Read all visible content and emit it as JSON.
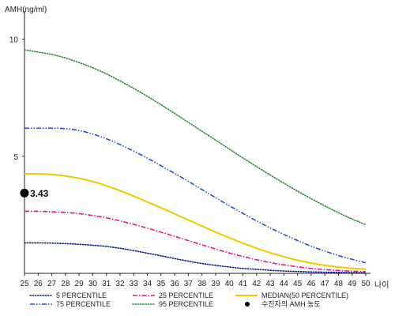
{
  "chart_data": {
    "type": "line",
    "ylabel": "AMH(ng/ml)",
    "xlabel": "나이",
    "xlim": [
      25,
      50
    ],
    "ylim": [
      0,
      11
    ],
    "x": [
      25,
      26,
      27,
      28,
      29,
      30,
      31,
      32,
      33,
      34,
      35,
      36,
      37,
      38,
      39,
      40,
      41,
      42,
      43,
      44,
      45,
      46,
      47,
      48,
      49,
      50
    ],
    "x_tick_labels": [
      "25",
      "26",
      "27",
      "28",
      "29",
      "30",
      "31",
      "32",
      "33",
      "34",
      "35",
      "36",
      "37",
      "38",
      "39",
      "40",
      "41",
      "42",
      "43",
      "44",
      "45",
      "46",
      "47",
      "48",
      "49",
      "50"
    ],
    "y_ticks": [
      5,
      10
    ],
    "y_tick_labels": [
      "5",
      "10"
    ],
    "series": [
      {
        "name": "5 PERCENTILE",
        "color": "#0a1a8c",
        "dash": "dotted",
        "values": [
          1.3,
          1.3,
          1.29,
          1.27,
          1.24,
          1.2,
          1.15,
          1.07,
          0.97,
          0.86,
          0.75,
          0.63,
          0.52,
          0.42,
          0.34,
          0.27,
          0.21,
          0.17,
          0.13,
          0.1,
          0.08,
          0.06,
          0.05,
          0.04,
          0.03,
          0.02
        ]
      },
      {
        "name": "25 PERCENTILE",
        "color": "#e0188a",
        "dash": "dashdot",
        "values": [
          2.65,
          2.65,
          2.63,
          2.6,
          2.55,
          2.47,
          2.37,
          2.24,
          2.09,
          1.93,
          1.76,
          1.58,
          1.4,
          1.22,
          1.04,
          0.87,
          0.72,
          0.58,
          0.46,
          0.36,
          0.28,
          0.21,
          0.16,
          0.12,
          0.09,
          0.07
        ]
      },
      {
        "name": "MEDIAN(50 PERCENTILE)",
        "color": "#f0c800",
        "dash": "solid",
        "values": [
          4.25,
          4.25,
          4.22,
          4.16,
          4.06,
          3.92,
          3.74,
          3.53,
          3.3,
          3.05,
          2.8,
          2.54,
          2.28,
          2.02,
          1.76,
          1.52,
          1.29,
          1.07,
          0.88,
          0.71,
          0.56,
          0.44,
          0.34,
          0.27,
          0.21,
          0.18
        ]
      },
      {
        "name": "75 PERCENTILE",
        "color": "#2a4cc8",
        "dash": "dashdotdot",
        "values": [
          6.2,
          6.2,
          6.2,
          6.18,
          6.1,
          5.95,
          5.75,
          5.5,
          5.22,
          4.92,
          4.6,
          4.27,
          3.93,
          3.58,
          3.23,
          2.89,
          2.56,
          2.24,
          1.94,
          1.66,
          1.4,
          1.16,
          0.95,
          0.76,
          0.6,
          0.45
        ]
      },
      {
        "name": "95 PERCENTILE",
        "color": "#2e8b3a",
        "dash": "dotted",
        "values": [
          9.55,
          9.45,
          9.35,
          9.2,
          9.0,
          8.78,
          8.52,
          8.22,
          7.9,
          7.56,
          7.2,
          6.83,
          6.45,
          6.07,
          5.69,
          5.31,
          4.93,
          4.56,
          4.2,
          3.85,
          3.51,
          3.19,
          2.88,
          2.59,
          2.32,
          2.08
        ]
      }
    ],
    "marker": {
      "name": "수진자의 AMH 농도",
      "x": 25,
      "y": 3.43,
      "label": "3.43",
      "color": "#000000"
    },
    "legend": {
      "placement": "bottom",
      "entries": [
        {
          "label": "5 PERCENTILE",
          "color": "#0a1a8c",
          "dash": "dotted",
          "kind": "line"
        },
        {
          "label": "25 PERCENTILE",
          "color": "#e0188a",
          "dash": "dashdot",
          "kind": "line"
        },
        {
          "label": "MEDIAN(50 PERCENTILE)",
          "color": "#f0c800",
          "dash": "solid",
          "kind": "line"
        },
        {
          "label": "75 PERCENTILE",
          "color": "#2a4cc8",
          "dash": "dashdotdot",
          "kind": "line"
        },
        {
          "label": "95 PERCENTILE",
          "color": "#2e8b3a",
          "dash": "dotted",
          "kind": "line"
        },
        {
          "label": "수진자의 AMH 농도",
          "color": "#000000",
          "dash": "solid",
          "kind": "dot"
        }
      ]
    },
    "grid": false
  }
}
